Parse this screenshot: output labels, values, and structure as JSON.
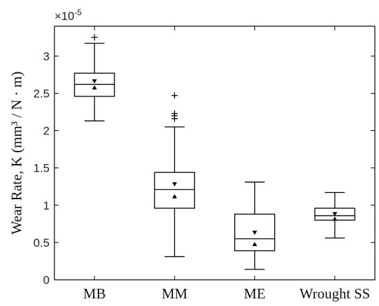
{
  "chart_data": {
    "type": "box",
    "title": "",
    "xlabel": "",
    "ylabel": "Wear Rate, K (mm³ / N · m)",
    "y_multiplier": "×10",
    "y_exponent": "-5",
    "ylim": [
      0,
      3.4
    ],
    "yticks": [
      "0",
      "0.5",
      "1",
      "1.5",
      "2",
      "2.5",
      "3"
    ],
    "ytick_values": [
      0,
      0.5,
      1,
      1.5,
      2,
      2.5,
      3
    ],
    "categories": [
      "MB",
      "MM",
      "ME",
      "Wrought SS"
    ],
    "boxes": [
      {
        "category": "MB",
        "whisker_low": 2.13,
        "q1": 2.46,
        "median": 2.62,
        "q3": 2.77,
        "whisker_high": 3.17,
        "notch_upper": 2.66,
        "notch_lower": 2.58,
        "outliers": [
          3.25
        ]
      },
      {
        "category": "MM",
        "whisker_low": 0.31,
        "q1": 0.96,
        "median": 1.21,
        "q3": 1.44,
        "whisker_high": 2.05,
        "notch_upper": 1.28,
        "notch_lower": 1.12,
        "outliers": [
          2.47,
          2.23,
          2.2,
          2.16
        ]
      },
      {
        "category": "ME",
        "whisker_low": 0.14,
        "q1": 0.39,
        "median": 0.55,
        "q3": 0.88,
        "whisker_high": 1.31,
        "notch_upper": 0.63,
        "notch_lower": 0.48,
        "outliers": []
      },
      {
        "category": "Wrought SS",
        "whisker_low": 0.56,
        "q1": 0.8,
        "median": 0.86,
        "q3": 0.96,
        "whisker_high": 1.17,
        "notch_upper": 0.88,
        "notch_lower": 0.82,
        "outliers": []
      }
    ],
    "colors": {
      "line": "#000000",
      "background": "#ffffff"
    },
    "grid": false,
    "legend": "none"
  }
}
